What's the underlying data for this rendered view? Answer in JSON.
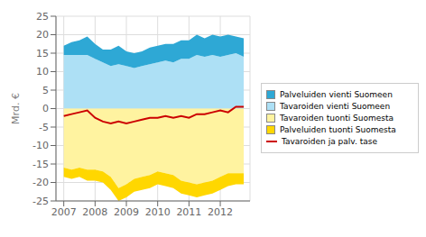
{
  "chart_data": {
    "type": "area",
    "ylabel": "Mrd. €",
    "x": [
      2007,
      2007.25,
      2007.5,
      2007.75,
      2008,
      2008.25,
      2008.5,
      2008.75,
      2009,
      2009.25,
      2009.5,
      2009.75,
      2010,
      2010.25,
      2010.5,
      2010.75,
      2011,
      2011.25,
      2011.5,
      2011.75,
      2012,
      2012.25,
      2012.5,
      2012.75
    ],
    "xlim": [
      2006.75,
      2012.95
    ],
    "xticks": [
      2007,
      2008,
      2009,
      2010,
      2011,
      2012
    ],
    "ylim": [
      -25,
      25
    ],
    "yticks": [
      -25,
      -20,
      -15,
      -10,
      -5,
      0,
      5,
      10,
      15,
      20,
      25
    ],
    "grid": true,
    "stacked": true,
    "legend": "right",
    "series": [
      {
        "name": "Palveluiden vienti Suomeen",
        "type": "area",
        "color": "#2EA8D5",
        "values": [
          2.5,
          3.5,
          4.0,
          5.0,
          4.0,
          3.5,
          4.5,
          5.0,
          4.0,
          4.0,
          4.0,
          4.5,
          4.5,
          4.5,
          5.0,
          5.0,
          5.0,
          5.5,
          5.0,
          5.5,
          5.5,
          5.5,
          4.5,
          5.0
        ]
      },
      {
        "name": "Tavaroiden vienti Suomeen",
        "type": "area",
        "color": "#ADE0F5",
        "values": [
          14.5,
          14.5,
          14.5,
          14.5,
          13.5,
          12.5,
          11.5,
          12.0,
          11.5,
          11.0,
          11.5,
          12.0,
          12.5,
          13.0,
          12.5,
          13.5,
          13.5,
          14.5,
          14.0,
          14.5,
          14.0,
          14.5,
          15.0,
          14.0
        ]
      },
      {
        "name": "Tavaroiden tuonti Suomesta",
        "type": "area",
        "color": "#FFF3A0",
        "values": [
          -16.0,
          -16.5,
          -16.0,
          -16.5,
          -16.5,
          -17.0,
          -18.5,
          -21.5,
          -20.5,
          -19.0,
          -18.5,
          -18.0,
          -17.0,
          -17.5,
          -18.0,
          -19.5,
          -20.0,
          -20.5,
          -20.0,
          -19.5,
          -18.5,
          -17.5,
          -17.5,
          -17.5
        ]
      },
      {
        "name": "Palveluiden tuonti Suomesta",
        "type": "area",
        "color": "#FFD700",
        "values": [
          -2.5,
          -2.5,
          -2.5,
          -3.0,
          -3.0,
          -3.0,
          -3.5,
          -3.5,
          -3.5,
          -3.5,
          -3.5,
          -3.5,
          -3.5,
          -3.5,
          -3.5,
          -3.5,
          -3.5,
          -3.5,
          -3.5,
          -3.5,
          -3.5,
          -3.5,
          -3.0,
          -3.0
        ]
      },
      {
        "name": "Tavaroiden ja palv. tase",
        "type": "line",
        "color": "#CC0000",
        "values": [
          -2.0,
          -1.5,
          -1.0,
          -0.5,
          -2.5,
          -3.5,
          -4.0,
          -3.5,
          -4.0,
          -3.5,
          -3.0,
          -2.5,
          -2.5,
          -2.0,
          -2.5,
          -2.0,
          -2.5,
          -1.5,
          -1.5,
          -1.0,
          -0.5,
          -1.0,
          0.5,
          0.5
        ]
      }
    ]
  }
}
